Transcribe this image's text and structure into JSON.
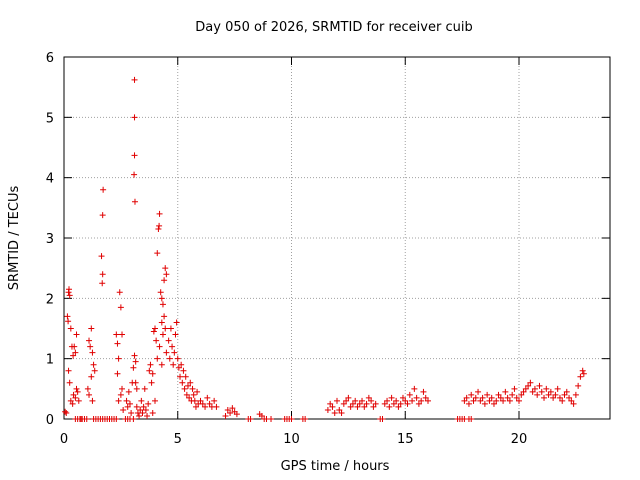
{
  "chart_data": {
    "type": "scatter",
    "title": "Day 050 of 2026, SRMTID for receiver cuib",
    "xlabel": "GPS time / hours",
    "ylabel": "SRMTID / TECUs",
    "xlim": [
      0,
      24
    ],
    "ylim": [
      0,
      6
    ],
    "xticks": [
      0,
      5,
      10,
      15,
      20
    ],
    "yticks": [
      0,
      1,
      2,
      3,
      4,
      5,
      6
    ],
    "grid": true,
    "marker": "+",
    "color": "#e00000",
    "series": [
      {
        "name": "SRMTID",
        "points": [
          [
            0.05,
            0.12
          ],
          [
            0.1,
            0.1
          ],
          [
            0.15,
            1.7
          ],
          [
            0.18,
            1.62
          ],
          [
            0.2,
            2.1
          ],
          [
            0.22,
            2.15
          ],
          [
            0.25,
            2.05
          ],
          [
            0.2,
            0.8
          ],
          [
            0.25,
            0.6
          ],
          [
            0.3,
            0.3
          ],
          [
            0.3,
            1.5
          ],
          [
            0.35,
            1.2
          ],
          [
            0.38,
            0.25
          ],
          [
            0.4,
            1.05
          ],
          [
            0.42,
            0.4
          ],
          [
            0.45,
            1.2
          ],
          [
            0.5,
            1.1
          ],
          [
            0.5,
            0.35
          ],
          [
            0.55,
            0.5
          ],
          [
            0.6,
            0.45
          ],
          [
            0.65,
            0.3
          ],
          [
            0.5,
            0.0
          ],
          [
            0.6,
            0.0
          ],
          [
            0.7,
            0.0
          ],
          [
            0.8,
            0.0
          ],
          [
            0.9,
            0.0
          ],
          [
            0.55,
            1.4
          ],
          [
            0.75,
            0.0
          ],
          [
            1.0,
            0.0
          ],
          [
            1.05,
            0.5
          ],
          [
            1.1,
            0.4
          ],
          [
            1.1,
            1.3
          ],
          [
            1.15,
            1.2
          ],
          [
            1.2,
            1.5
          ],
          [
            1.25,
            1.1
          ],
          [
            1.3,
            0.9
          ],
          [
            1.35,
            0.8
          ],
          [
            1.2,
            0.7
          ],
          [
            1.3,
            0.0
          ],
          [
            1.4,
            0.0
          ],
          [
            1.5,
            0.0
          ],
          [
            1.6,
            0.0
          ],
          [
            1.7,
            0.0
          ],
          [
            1.25,
            0.3
          ],
          [
            1.65,
            2.7
          ],
          [
            1.7,
            2.4
          ],
          [
            1.68,
            2.25
          ],
          [
            1.72,
            3.8
          ],
          [
            1.7,
            3.38
          ],
          [
            1.8,
            0.0
          ],
          [
            1.9,
            0.0
          ],
          [
            2.0,
            0.0
          ],
          [
            2.1,
            0.0
          ],
          [
            2.2,
            0.0
          ],
          [
            2.3,
            0.0
          ],
          [
            2.3,
            1.4
          ],
          [
            2.35,
            1.25
          ],
          [
            2.4,
            1.0
          ],
          [
            2.35,
            0.75
          ],
          [
            2.45,
            2.1
          ],
          [
            2.5,
            1.85
          ],
          [
            2.55,
            1.4
          ],
          [
            2.4,
            0.3
          ],
          [
            2.5,
            0.4
          ],
          [
            2.55,
            0.5
          ],
          [
            2.6,
            0.15
          ],
          [
            2.7,
            0.0
          ],
          [
            2.8,
            0.0
          ],
          [
            2.9,
            0.0
          ],
          [
            2.75,
            0.3
          ],
          [
            2.8,
            0.2
          ],
          [
            2.85,
            0.45
          ],
          [
            2.9,
            0.25
          ],
          [
            2.95,
            0.1
          ],
          [
            3.0,
            0.6
          ],
          [
            3.05,
            0.85
          ],
          [
            3.05,
            0.0
          ],
          [
            3.1,
            5.62
          ],
          [
            3.1,
            5.0
          ],
          [
            3.1,
            4.37
          ],
          [
            3.08,
            4.05
          ],
          [
            3.12,
            3.6
          ],
          [
            3.1,
            1.05
          ],
          [
            3.15,
            0.95
          ],
          [
            3.15,
            0.6
          ],
          [
            3.2,
            0.5
          ],
          [
            3.2,
            0.2
          ],
          [
            3.25,
            0.1
          ],
          [
            3.3,
            0.05
          ],
          [
            3.35,
            0.15
          ],
          [
            3.4,
            0.3
          ],
          [
            3.45,
            0.1
          ],
          [
            3.5,
            0.2
          ],
          [
            3.55,
            0.5
          ],
          [
            3.6,
            0.15
          ],
          [
            3.65,
            0.05
          ],
          [
            3.7,
            0.25
          ],
          [
            3.75,
            0.8
          ],
          [
            3.8,
            0.9
          ],
          [
            3.85,
            0.6
          ],
          [
            3.9,
            0.75
          ],
          [
            3.95,
            1.45
          ],
          [
            4.0,
            1.5
          ],
          [
            4.05,
            1.3
          ],
          [
            4.0,
            0.3
          ],
          [
            3.9,
            0.1
          ],
          [
            4.1,
            2.75
          ],
          [
            4.15,
            3.15
          ],
          [
            4.2,
            3.4
          ],
          [
            4.18,
            3.2
          ],
          [
            4.25,
            2.1
          ],
          [
            4.3,
            2.0
          ],
          [
            4.35,
            1.9
          ],
          [
            4.4,
            2.3
          ],
          [
            4.45,
            2.5
          ],
          [
            4.5,
            2.4
          ],
          [
            4.4,
            1.7
          ],
          [
            4.3,
            1.6
          ],
          [
            4.45,
            1.5
          ],
          [
            4.2,
            1.2
          ],
          [
            4.1,
            1.0
          ],
          [
            4.3,
            0.9
          ],
          [
            4.35,
            1.4
          ],
          [
            4.5,
            1.1
          ],
          [
            4.6,
            1.3
          ],
          [
            4.65,
            1.0
          ],
          [
            4.7,
            1.5
          ],
          [
            4.75,
            1.2
          ],
          [
            4.8,
            0.9
          ],
          [
            4.85,
            1.1
          ],
          [
            4.9,
            1.4
          ],
          [
            4.95,
            1.6
          ],
          [
            5.0,
            1.0
          ],
          [
            5.05,
            0.85
          ],
          [
            5.1,
            0.7
          ],
          [
            5.15,
            0.9
          ],
          [
            5.2,
            0.6
          ],
          [
            5.25,
            0.8
          ],
          [
            5.3,
            0.5
          ],
          [
            5.35,
            0.7
          ],
          [
            5.4,
            0.4
          ],
          [
            5.45,
            0.55
          ],
          [
            5.5,
            0.35
          ],
          [
            5.55,
            0.6
          ],
          [
            5.6,
            0.3
          ],
          [
            5.65,
            0.5
          ],
          [
            5.7,
            0.4
          ],
          [
            5.75,
            0.3
          ],
          [
            5.8,
            0.2
          ],
          [
            5.85,
            0.45
          ],
          [
            5.9,
            0.25
          ],
          [
            6.0,
            0.3
          ],
          [
            6.1,
            0.25
          ],
          [
            6.2,
            0.2
          ],
          [
            6.3,
            0.35
          ],
          [
            6.4,
            0.25
          ],
          [
            6.5,
            0.2
          ],
          [
            6.6,
            0.3
          ],
          [
            6.7,
            0.2
          ],
          [
            7.1,
            0.05
          ],
          [
            7.2,
            0.15
          ],
          [
            7.3,
            0.1
          ],
          [
            7.4,
            0.18
          ],
          [
            7.5,
            0.12
          ],
          [
            7.6,
            0.08
          ],
          [
            8.1,
            0.0
          ],
          [
            8.2,
            0.0
          ],
          [
            8.6,
            0.08
          ],
          [
            8.7,
            0.05
          ],
          [
            8.8,
            0.0
          ],
          [
            8.9,
            0.0
          ],
          [
            9.1,
            0.0
          ],
          [
            9.7,
            0.0
          ],
          [
            9.8,
            0.0
          ],
          [
            9.9,
            0.0
          ],
          [
            10.0,
            0.0
          ],
          [
            10.5,
            0.0
          ],
          [
            10.6,
            0.0
          ],
          [
            11.6,
            0.15
          ],
          [
            11.7,
            0.25
          ],
          [
            11.8,
            0.2
          ],
          [
            11.9,
            0.1
          ],
          [
            12.0,
            0.3
          ],
          [
            12.1,
            0.15
          ],
          [
            12.2,
            0.1
          ],
          [
            12.3,
            0.25
          ],
          [
            12.4,
            0.3
          ],
          [
            12.5,
            0.35
          ],
          [
            12.6,
            0.2
          ],
          [
            12.7,
            0.25
          ],
          [
            12.8,
            0.3
          ],
          [
            12.9,
            0.2
          ],
          [
            13.0,
            0.25
          ],
          [
            13.1,
            0.3
          ],
          [
            13.2,
            0.2
          ],
          [
            13.3,
            0.25
          ],
          [
            13.4,
            0.35
          ],
          [
            13.5,
            0.3
          ],
          [
            13.6,
            0.2
          ],
          [
            13.7,
            0.25
          ],
          [
            13.9,
            0.0
          ],
          [
            14.0,
            0.0
          ],
          [
            14.1,
            0.25
          ],
          [
            14.2,
            0.3
          ],
          [
            14.3,
            0.2
          ],
          [
            14.4,
            0.35
          ],
          [
            14.5,
            0.25
          ],
          [
            14.6,
            0.3
          ],
          [
            14.7,
            0.2
          ],
          [
            14.8,
            0.25
          ],
          [
            14.9,
            0.35
          ],
          [
            15.0,
            0.3
          ],
          [
            15.1,
            0.25
          ],
          [
            15.2,
            0.4
          ],
          [
            15.3,
            0.3
          ],
          [
            15.4,
            0.5
          ],
          [
            15.5,
            0.35
          ],
          [
            15.6,
            0.25
          ],
          [
            15.7,
            0.3
          ],
          [
            15.8,
            0.45
          ],
          [
            15.9,
            0.35
          ],
          [
            16.0,
            0.3
          ],
          [
            17.3,
            0.0
          ],
          [
            17.4,
            0.0
          ],
          [
            17.5,
            0.0
          ],
          [
            17.6,
            0.0
          ],
          [
            17.8,
            0.0
          ],
          [
            17.9,
            0.0
          ],
          [
            17.6,
            0.3
          ],
          [
            17.7,
            0.35
          ],
          [
            17.8,
            0.25
          ],
          [
            17.9,
            0.4
          ],
          [
            18.0,
            0.3
          ],
          [
            18.1,
            0.35
          ],
          [
            18.2,
            0.45
          ],
          [
            18.3,
            0.3
          ],
          [
            18.4,
            0.35
          ],
          [
            18.5,
            0.25
          ],
          [
            18.6,
            0.4
          ],
          [
            18.7,
            0.3
          ],
          [
            18.8,
            0.35
          ],
          [
            18.9,
            0.25
          ],
          [
            19.0,
            0.3
          ],
          [
            19.1,
            0.4
          ],
          [
            19.2,
            0.35
          ],
          [
            19.3,
            0.3
          ],
          [
            19.4,
            0.45
          ],
          [
            19.5,
            0.35
          ],
          [
            19.6,
            0.3
          ],
          [
            19.7,
            0.4
          ],
          [
            19.8,
            0.5
          ],
          [
            19.9,
            0.35
          ],
          [
            20.0,
            0.3
          ],
          [
            20.1,
            0.4
          ],
          [
            20.2,
            0.45
          ],
          [
            20.3,
            0.5
          ],
          [
            20.4,
            0.55
          ],
          [
            20.5,
            0.6
          ],
          [
            20.6,
            0.45
          ],
          [
            20.7,
            0.5
          ],
          [
            20.8,
            0.4
          ],
          [
            20.9,
            0.55
          ],
          [
            21.0,
            0.45
          ],
          [
            21.1,
            0.35
          ],
          [
            21.2,
            0.5
          ],
          [
            21.3,
            0.4
          ],
          [
            21.4,
            0.45
          ],
          [
            21.5,
            0.35
          ],
          [
            21.6,
            0.4
          ],
          [
            21.7,
            0.5
          ],
          [
            21.8,
            0.35
          ],
          [
            21.9,
            0.3
          ],
          [
            22.0,
            0.4
          ],
          [
            22.1,
            0.45
          ],
          [
            22.2,
            0.35
          ],
          [
            22.3,
            0.3
          ],
          [
            22.4,
            0.25
          ],
          [
            22.5,
            0.4
          ],
          [
            22.6,
            0.55
          ],
          [
            22.7,
            0.7
          ],
          [
            22.8,
            0.8
          ],
          [
            22.85,
            0.75
          ]
        ]
      }
    ]
  }
}
